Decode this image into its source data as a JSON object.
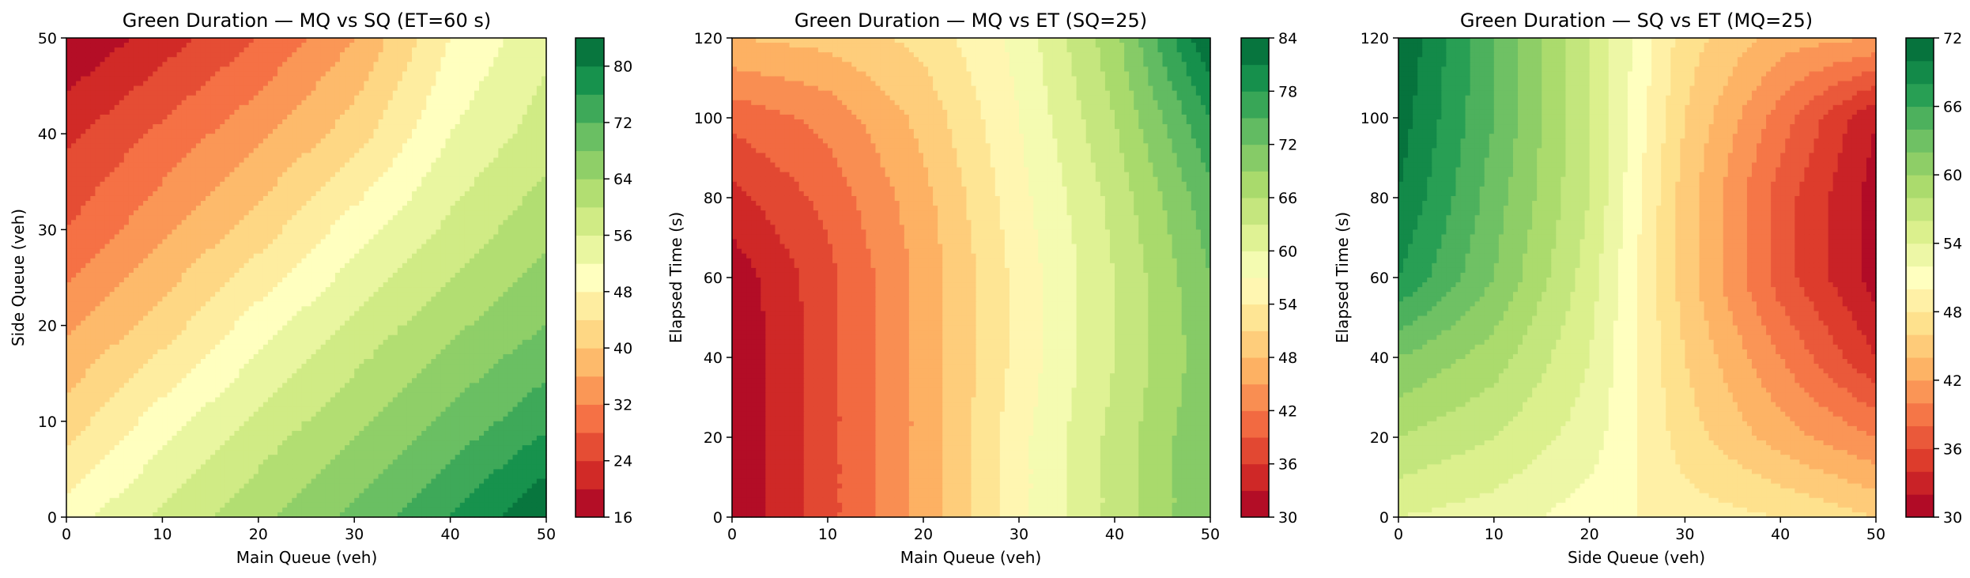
{
  "colormap": [
    "#a50026",
    "#d73027",
    "#f46d43",
    "#fdae61",
    "#fee08b",
    "#ffffbf",
    "#d9ef8b",
    "#a6d96a",
    "#66bd63",
    "#1a9850",
    "#006837"
  ],
  "chart_data": [
    {
      "type": "heatmap",
      "subtype": "filled-contour",
      "title": "Green Duration — MQ vs SQ  (ET=60 s)",
      "xlabel": "Main Queue (veh)",
      "ylabel": "Side Queue (veh)",
      "xlim": [
        0,
        50
      ],
      "ylim": [
        0,
        50
      ],
      "xticks": [
        "0",
        "10",
        "20",
        "30",
        "40",
        "50"
      ],
      "yticks": [
        "0",
        "10",
        "20",
        "30",
        "40",
        "50"
      ],
      "colorbar": {
        "min": 16,
        "max": 84,
        "step": 4,
        "ticks": [
          "16",
          "24",
          "32",
          "40",
          "48",
          "56",
          "64",
          "72",
          "80"
        ]
      },
      "x": [
        0,
        10,
        20,
        30,
        40,
        50
      ],
      "y": [
        0,
        10,
        20,
        30,
        40,
        50
      ],
      "z": [
        [
          50,
          57,
          63,
          69,
          76,
          84
        ],
        [
          42,
          50,
          57,
          63,
          69,
          75
        ],
        [
          35,
          42,
          50,
          57,
          63,
          68
        ],
        [
          28,
          35,
          42,
          50,
          57,
          63
        ],
        [
          23,
          29,
          35,
          42,
          52,
          58
        ],
        [
          16,
          22,
          28,
          36,
          48,
          55
        ]
      ]
    },
    {
      "type": "heatmap",
      "subtype": "filled-contour",
      "title": "Green Duration — MQ vs ET  (SQ=25)",
      "xlabel": "Main Queue (veh)",
      "ylabel": "Elapsed Time (s)",
      "xlim": [
        0,
        50
      ],
      "ylim": [
        0,
        120
      ],
      "xticks": [
        "0",
        "10",
        "20",
        "30",
        "40",
        "50"
      ],
      "yticks": [
        "0",
        "20",
        "40",
        "60",
        "80",
        "100",
        "120"
      ],
      "colorbar": {
        "min": 30,
        "max": 84,
        "step": 3,
        "ticks": [
          "30",
          "36",
          "42",
          "48",
          "54",
          "60",
          "66",
          "72",
          "78",
          "84"
        ]
      },
      "x": [
        0,
        10,
        20,
        30,
        40,
        50
      ],
      "y": [
        0,
        20,
        40,
        60,
        80,
        100,
        120
      ],
      "z": [
        [
          30,
          38,
          46,
          56,
          64,
          72
        ],
        [
          30,
          38,
          46,
          56,
          64,
          72
        ],
        [
          30,
          38,
          46,
          55,
          63,
          71
        ],
        [
          31,
          38,
          46,
          55,
          63,
          72
        ],
        [
          35,
          40,
          47,
          56,
          64,
          74
        ],
        [
          40,
          43,
          49,
          57,
          66,
          78
        ],
        [
          48,
          49,
          52,
          58,
          68,
          84
        ]
      ]
    },
    {
      "type": "heatmap",
      "subtype": "filled-contour",
      "title": "Green Duration — SQ vs ET  (MQ=25)",
      "xlabel": "Side Queue (veh)",
      "ylabel": "Elapsed Time (s)",
      "xlim": [
        0,
        50
      ],
      "ylim": [
        0,
        120
      ],
      "xticks": [
        "0",
        "10",
        "20",
        "30",
        "40",
        "50"
      ],
      "yticks": [
        "0",
        "20",
        "40",
        "60",
        "80",
        "100",
        "120"
      ],
      "colorbar": {
        "min": 30,
        "max": 72,
        "step": 2,
        "ticks": [
          "30",
          "36",
          "42",
          "48",
          "54",
          "60",
          "66",
          "72"
        ]
      },
      "x": [
        0,
        10,
        20,
        30,
        40,
        50
      ],
      "y": [
        0,
        20,
        40,
        60,
        80,
        100,
        120
      ],
      "z": [
        [
          54,
          53,
          51,
          49,
          48,
          46
        ],
        [
          58,
          56,
          53,
          47,
          43,
          40
        ],
        [
          62,
          59,
          54,
          46,
          40,
          34
        ],
        [
          68,
          62,
          55,
          45,
          37,
          31
        ],
        [
          70,
          63,
          56,
          45,
          37,
          31
        ],
        [
          71,
          64,
          56,
          46,
          39,
          32
        ],
        [
          72,
          64,
          56,
          47,
          43,
          42
        ]
      ]
    }
  ]
}
